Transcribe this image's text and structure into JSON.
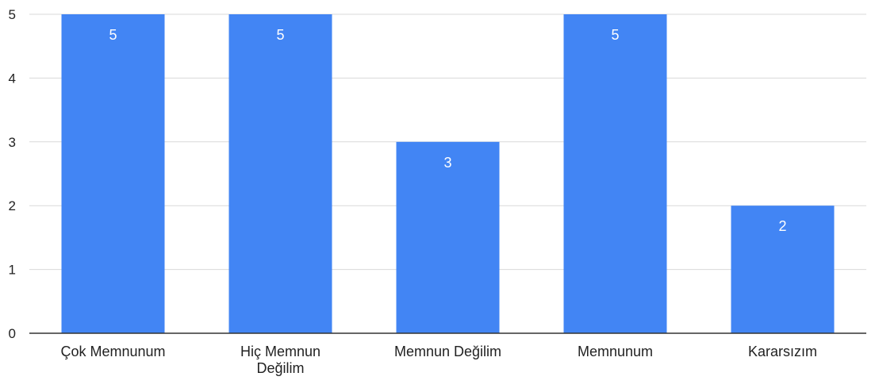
{
  "chart_data": {
    "type": "bar",
    "title": "",
    "xlabel": "",
    "ylabel": "",
    "categories": [
      "Çok Memnunum",
      "Hiç Memnun Değilim",
      "Memnun Değilim",
      "Memnunum",
      "Kararsızım"
    ],
    "category_label_lines": [
      [
        "Çok Memnunum"
      ],
      [
        "Hiç Memnun",
        "Değilim"
      ],
      [
        "Memnun Değilim"
      ],
      [
        "Memnunum"
      ],
      [
        "Kararsızım"
      ]
    ],
    "values": [
      5,
      5,
      3,
      5,
      2
    ],
    "ylim": [
      0,
      5
    ],
    "yticks": [
      "0",
      "1",
      "2",
      "3",
      "4",
      "5"
    ],
    "data_labels": [
      "5",
      "5",
      "3",
      "5",
      "2"
    ],
    "grid": true,
    "legend": "none",
    "bar_color": "#4285f4"
  }
}
